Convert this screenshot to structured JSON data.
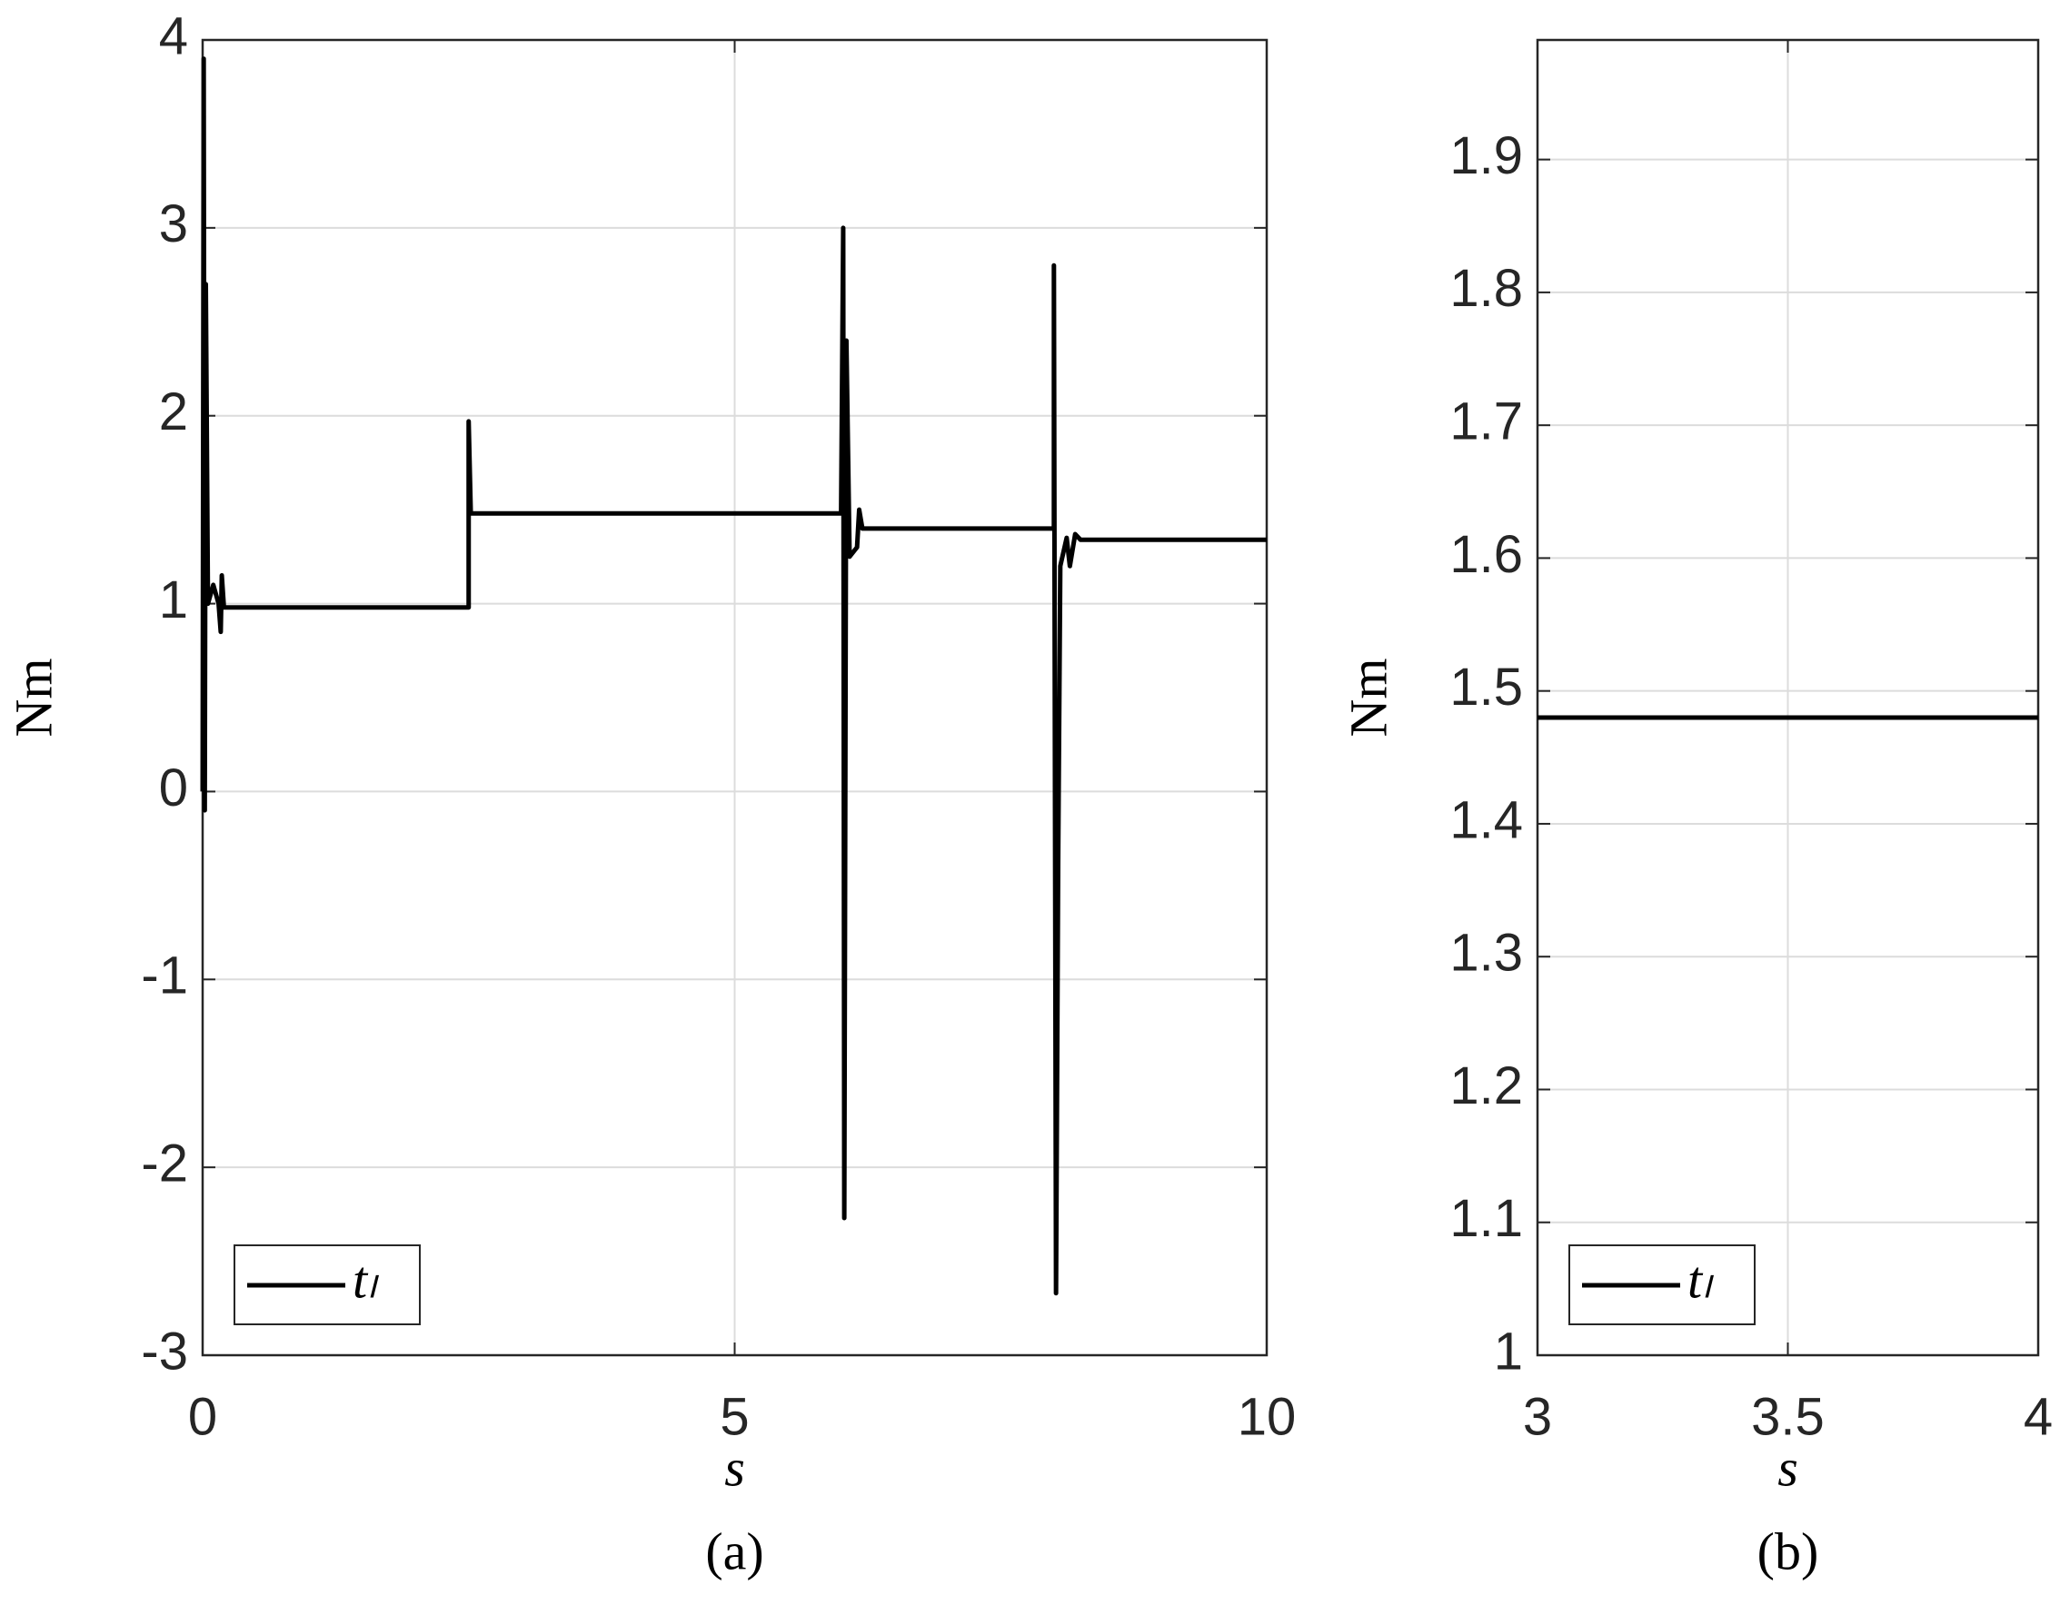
{
  "chart_data": [
    {
      "type": "line",
      "caption": "(a)",
      "xlabel": "s",
      "ylabel": "Nm",
      "x": [
        0,
        0.01,
        0.02,
        0.03,
        0.05,
        0.1,
        0.15,
        0.17,
        0.18,
        0.2,
        2.5,
        2.5,
        2.52,
        6.0,
        6.02,
        6.03,
        6.05,
        6.08,
        6.15,
        6.17,
        6.2,
        8.0,
        8.0,
        8.02,
        8.04,
        8.06,
        8.12,
        8.15,
        8.2,
        8.25,
        10
      ],
      "series": [
        {
          "name": "tₗ",
          "color": "#000000",
          "values": [
            0,
            3.9,
            -0.1,
            2.7,
            1.0,
            1.1,
            1.0,
            0.85,
            1.15,
            0.98,
            0.98,
            1.97,
            1.48,
            1.48,
            3.0,
            -2.27,
            2.4,
            1.25,
            1.3,
            1.5,
            1.4,
            1.4,
            2.8,
            -2.67,
            -0.4,
            1.2,
            1.35,
            1.2,
            1.37,
            1.34,
            1.34
          ]
        }
      ],
      "xlim": [
        0,
        10
      ],
      "xticks": [
        0,
        5,
        10
      ],
      "ylim": [
        -3,
        4
      ],
      "yticks": [
        -3,
        -2,
        -1,
        0,
        1,
        2,
        3,
        4
      ],
      "grid": true,
      "legend": "lower left"
    },
    {
      "type": "line",
      "caption": "(b)",
      "xlabel": "s",
      "ylabel": "Nm",
      "x": [
        3,
        4
      ],
      "series": [
        {
          "name": "tₗ",
          "color": "#000000",
          "values": [
            1.48,
            1.48
          ]
        }
      ],
      "xlim": [
        3,
        4
      ],
      "xticks": [
        3,
        3.5,
        4
      ],
      "ylim": [
        1,
        1.99
      ],
      "yticks": [
        1,
        1.1,
        1.2,
        1.3,
        1.4,
        1.5,
        1.6,
        1.7,
        1.8,
        1.9
      ],
      "grid": true,
      "legend": "lower left"
    }
  ]
}
